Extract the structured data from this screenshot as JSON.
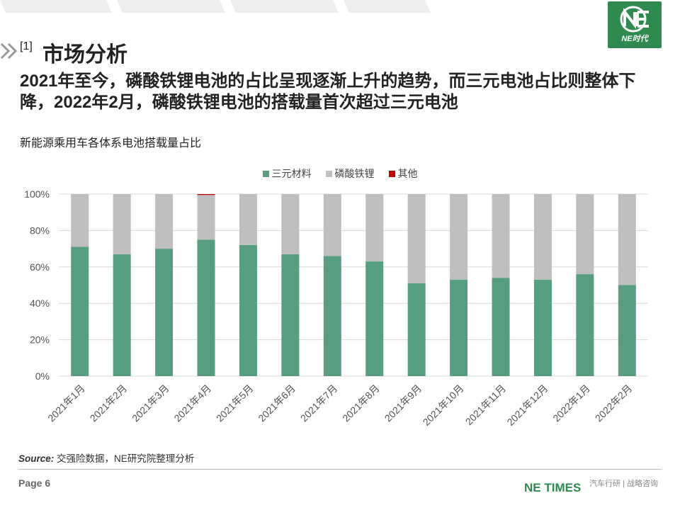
{
  "header": {
    "section_number": "[1]",
    "section_title": "市场分析",
    "logo_caption": "NE时代"
  },
  "headline": "2021年至今，磷酸铁锂电池的占比呈现逐渐上升的趋势，而三元电池占比则整体下降，2022年2月，磷酸铁锂电池的搭载量首次超过三元电池",
  "colors": {
    "ternary": "#579d7f",
    "lfp": "#bfbfbf",
    "other": "#c00000",
    "brand_green": "#2e8a4e"
  },
  "chart_data": {
    "type": "bar",
    "stacked": true,
    "title": "新能源乘用车各体系电池搭载量占比",
    "categories": [
      "2021年1月",
      "2021年2月",
      "2021年3月",
      "2021年4月",
      "2021年5月",
      "2021年6月",
      "2021年7月",
      "2021年8月",
      "2021年9月",
      "2021年10月",
      "2021年11月",
      "2021年12月",
      "2022年1月",
      "2022年2月"
    ],
    "series": [
      {
        "name": "三元材料",
        "values": [
          71,
          67,
          70,
          75,
          72,
          67,
          66,
          63,
          51,
          53,
          54,
          53,
          56,
          50
        ]
      },
      {
        "name": "磷酸铁锂",
        "values": [
          29,
          33,
          30,
          24.5,
          28,
          33,
          34,
          37,
          49,
          47,
          46,
          47,
          44,
          50
        ]
      },
      {
        "name": "其他",
        "values": [
          0,
          0,
          0,
          0.5,
          0,
          0,
          0,
          0,
          0,
          0,
          0,
          0,
          0,
          0
        ]
      }
    ],
    "y_ticks": [
      "0%",
      "20%",
      "40%",
      "60%",
      "80%",
      "100%"
    ],
    "ylim": [
      0,
      100
    ],
    "grid": true,
    "legend_position": "top"
  },
  "source": {
    "label": "Source:",
    "text": "交强险数据，NE研究院整理分析"
  },
  "footer": {
    "page": "Page 6",
    "brand": "NE TIMES",
    "brand_sub": "汽车行研 | 战略咨询"
  }
}
